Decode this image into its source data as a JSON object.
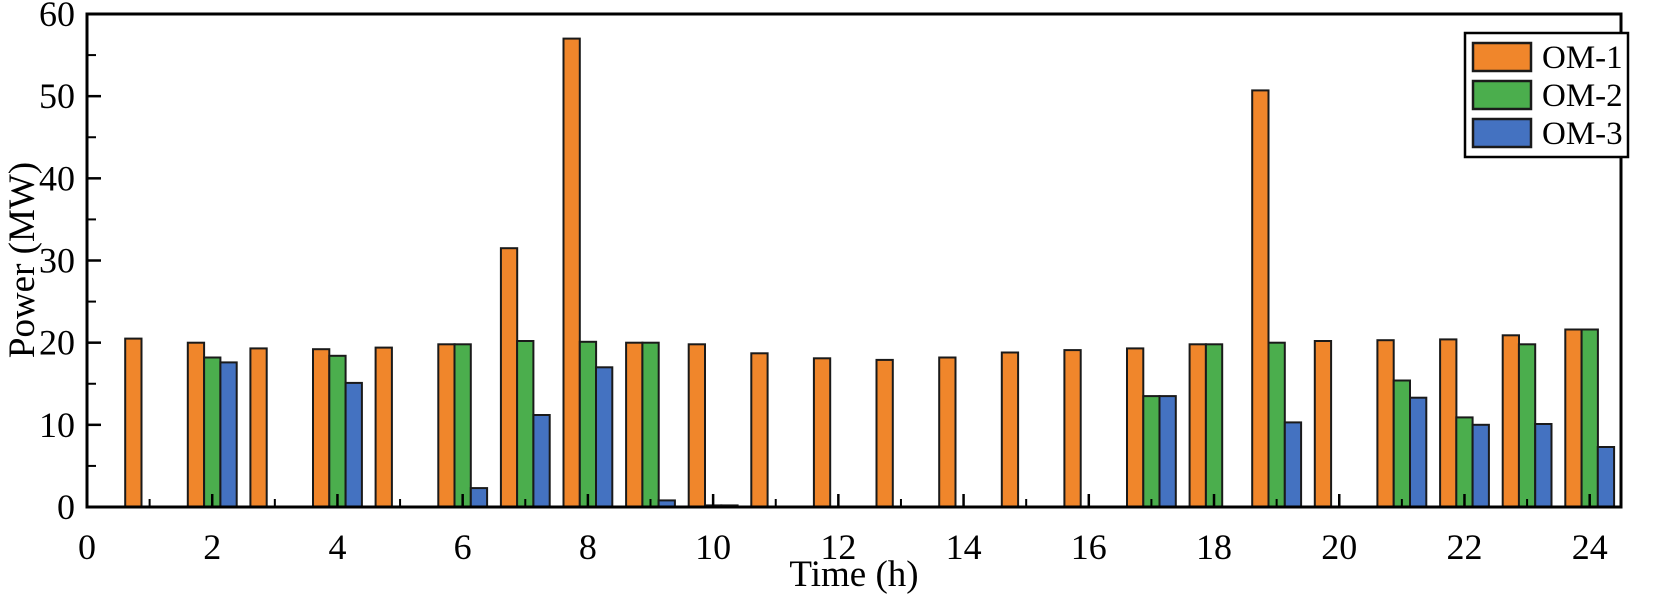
{
  "figure": {
    "background": "#ffffff",
    "axis_color": "#000000",
    "bar_border_color": "#1a1a1a"
  },
  "chart_data": {
    "type": "bar",
    "title": "",
    "xlabel": "Time (h)",
    "ylabel": "Power (MW)",
    "xlim": [
      0,
      24.5
    ],
    "ylim": [
      0,
      60
    ],
    "grid": false,
    "x_major_ticks": [
      0,
      2,
      4,
      6,
      8,
      10,
      12,
      14,
      16,
      18,
      20,
      22,
      24
    ],
    "x_minor_ticks": [
      1,
      3,
      5,
      7,
      9,
      11,
      13,
      15,
      17,
      19,
      21,
      23
    ],
    "y_major_ticks": [
      0,
      10,
      20,
      30,
      40,
      50,
      60
    ],
    "y_minor_ticks": [
      5,
      15,
      25,
      35,
      45,
      55
    ],
    "categories": [
      1,
      2,
      3,
      4,
      5,
      6,
      7,
      8,
      9,
      10,
      11,
      12,
      13,
      14,
      15,
      16,
      17,
      18,
      19,
      20,
      21,
      22,
      23,
      24
    ],
    "bar_width_hours": 0.26,
    "series": [
      {
        "name": "OM-1",
        "color": "#F0862B",
        "values": [
          20.5,
          20.0,
          19.3,
          19.2,
          19.4,
          19.8,
          31.5,
          57.0,
          20.0,
          19.8,
          18.7,
          18.1,
          17.9,
          18.2,
          18.8,
          19.1,
          19.3,
          19.8,
          50.7,
          20.2,
          20.3,
          20.4,
          20.9,
          21.6
        ]
      },
      {
        "name": "OM-2",
        "color": "#4BAE4D",
        "values": [
          0,
          18.2,
          0,
          18.4,
          0,
          19.8,
          20.2,
          20.1,
          20.0,
          0.2,
          0,
          0,
          0,
          0,
          0,
          0,
          13.5,
          19.8,
          20.0,
          0,
          15.4,
          10.9,
          19.8,
          21.6
        ]
      },
      {
        "name": "OM-3",
        "color": "#4472C1",
        "values": [
          0,
          17.6,
          0,
          15.1,
          0,
          2.3,
          11.2,
          17.0,
          0.8,
          0.2,
          0,
          0,
          0,
          0,
          0,
          0,
          13.5,
          0,
          10.3,
          0,
          13.3,
          10.0,
          10.1,
          7.3
        ]
      }
    ],
    "legend": {
      "position": "top-right",
      "entries": [
        "OM-1",
        "OM-2",
        "OM-3"
      ]
    }
  }
}
